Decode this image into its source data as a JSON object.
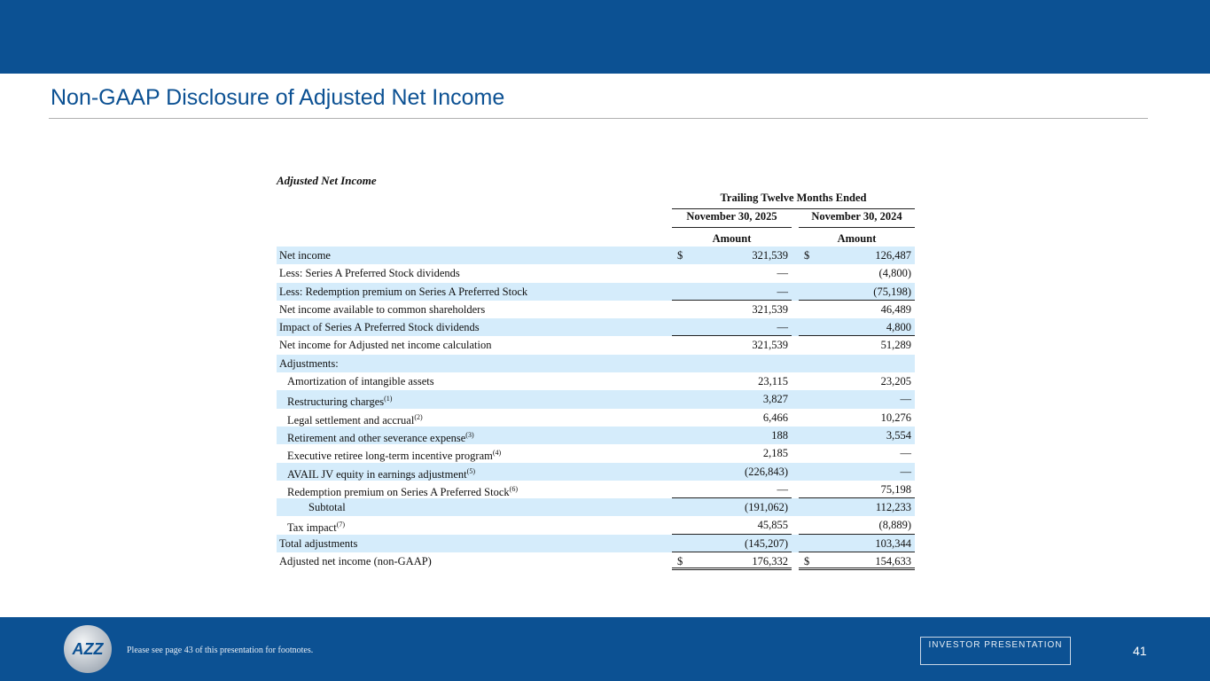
{
  "header": {
    "title": "Non-GAAP Disclosure of Adjusted Net Income"
  },
  "table": {
    "title": "Adjusted Net Income",
    "group_header": "Trailing Twelve Months Ended",
    "columns": [
      "November 30, 2025",
      "November 30, 2024"
    ],
    "subheader": [
      "Amount",
      "Amount"
    ],
    "rows": [
      {
        "label": "Net income",
        "sup": "",
        "v1": "321,539",
        "v2": "126,487",
        "d": "$"
      },
      {
        "label": "Less: Series A Preferred Stock dividends",
        "sup": "",
        "v1": "—",
        "v2": "(4,800)",
        "d": ""
      },
      {
        "label": "Less: Redemption premium on Series A Preferred Stock",
        "sup": "",
        "v1": "—",
        "v2": "(75,198)",
        "d": ""
      },
      {
        "label": "Net income available to common shareholders",
        "sup": "",
        "v1": "321,539",
        "v2": "46,489",
        "d": ""
      },
      {
        "label": "Impact of Series A Preferred Stock dividends",
        "sup": "",
        "v1": "—",
        "v2": "4,800",
        "d": ""
      },
      {
        "label": "Net income for Adjusted net income calculation",
        "sup": "",
        "v1": "321,539",
        "v2": "51,289",
        "d": ""
      },
      {
        "label": "Adjustments:",
        "sup": "",
        "v1": "",
        "v2": "",
        "d": ""
      },
      {
        "label": "Amortization of intangible assets",
        "sup": "",
        "v1": "23,115",
        "v2": "23,205",
        "d": ""
      },
      {
        "label": "Restructuring charges",
        "sup": "(1)",
        "v1": "3,827",
        "v2": "—",
        "d": ""
      },
      {
        "label": "Legal settlement and accrual",
        "sup": "(2)",
        "v1": "6,466",
        "v2": "10,276",
        "d": ""
      },
      {
        "label": "Retirement and other severance expense",
        "sup": "(3)",
        "v1": "188",
        "v2": "3,554",
        "d": ""
      },
      {
        "label": "Executive retiree long-term incentive program",
        "sup": "(4)",
        "v1": "2,185",
        "v2": "—",
        "d": ""
      },
      {
        "label": "AVAIL JV equity in earnings adjustment",
        "sup": "(5)",
        "v1": "(226,843)",
        "v2": "—",
        "d": ""
      },
      {
        "label": "Redemption premium on Series A Preferred Stock",
        "sup": "(6)",
        "v1": "—",
        "v2": "75,198",
        "d": ""
      },
      {
        "label": "Subtotal",
        "sup": "",
        "v1": "(191,062)",
        "v2": "112,233",
        "d": ""
      },
      {
        "label": "Tax impact",
        "sup": "(7)",
        "v1": "45,855",
        "v2": "(8,889)",
        "d": ""
      },
      {
        "label": "Total adjustments",
        "sup": "",
        "v1": "(145,207)",
        "v2": "103,344",
        "d": ""
      },
      {
        "label": "Adjusted net income (non-GAAP)",
        "sup": "",
        "v1": "176,332",
        "v2": "154,633",
        "d": "$"
      }
    ]
  },
  "footer": {
    "note": "Please see page 43 of this presentation for footnotes.",
    "badge": "INVESTOR PRESENTATION",
    "page": "41",
    "logo_text": "AZZ"
  }
}
